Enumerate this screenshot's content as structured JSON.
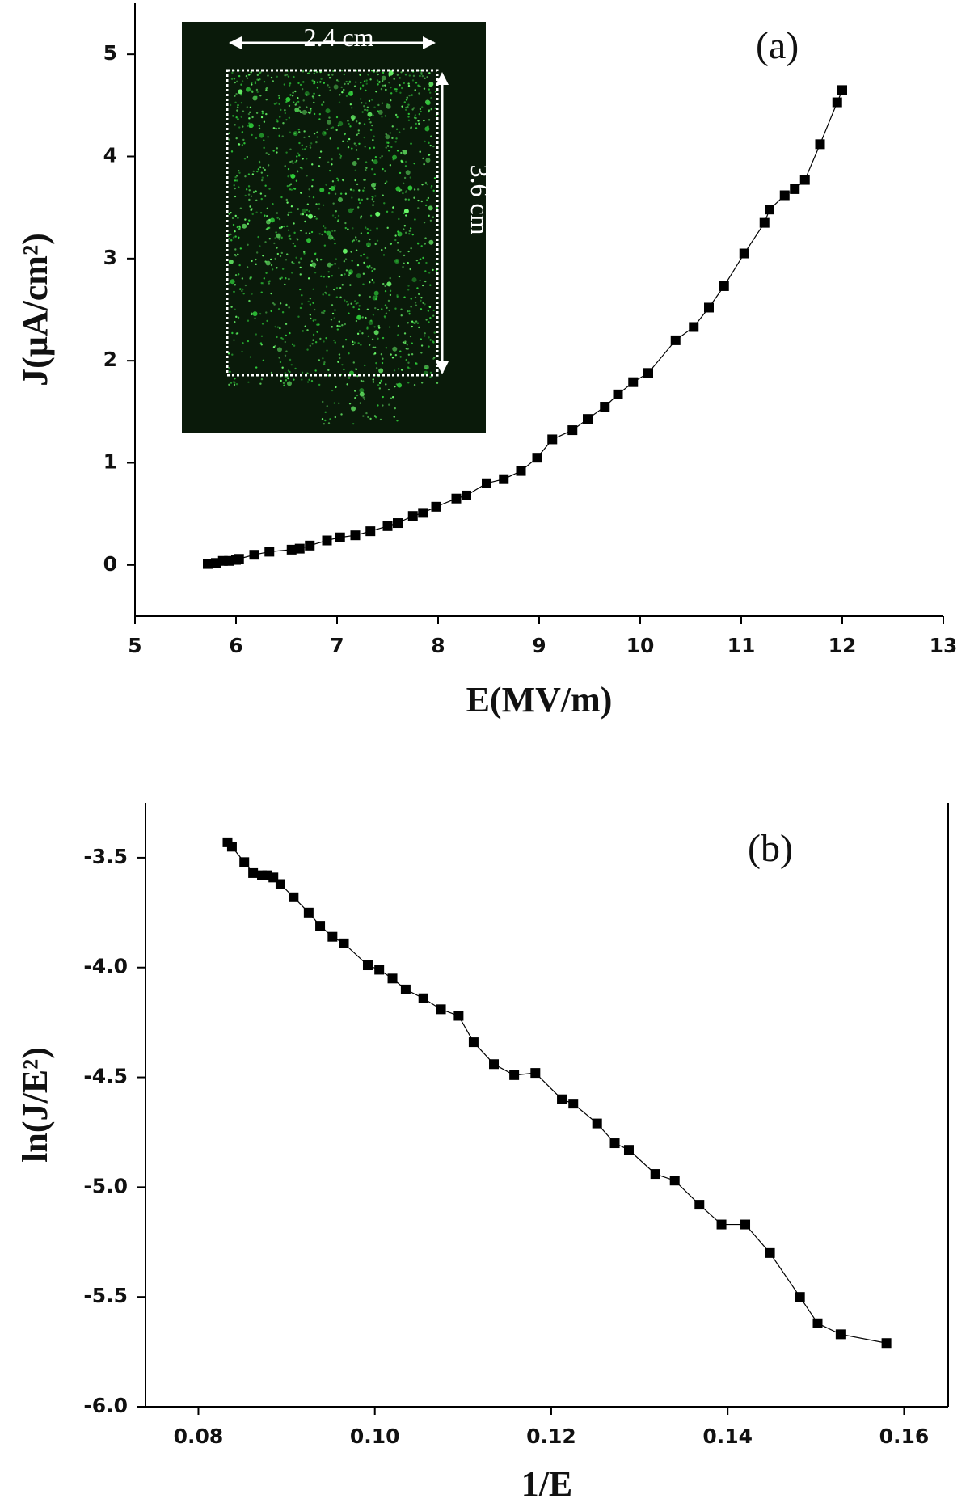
{
  "chart_data": [
    {
      "type": "line",
      "annotation": "(a)",
      "xlabel": "E(MV/m)",
      "ylabel": "J(μA/cm²)",
      "inset_labels": [
        "2.4 cm",
        "3.6 cm"
      ],
      "xlim": [
        5,
        13
      ],
      "ylim": [
        -0.5,
        5.5
      ],
      "xticks": [
        5,
        6,
        7,
        8,
        9,
        10,
        11,
        12,
        13
      ],
      "yticks": [
        0,
        1,
        2,
        3,
        4,
        5
      ],
      "series": [
        {
          "color": "#000000",
          "x": [
            5.72,
            5.8,
            5.87,
            5.93,
            6.0,
            6.03,
            6.18,
            6.33,
            6.55,
            6.63,
            6.73,
            6.9,
            7.03,
            7.18,
            7.33,
            7.5,
            7.6,
            7.75,
            7.85,
            7.98,
            8.18,
            8.28,
            8.48,
            8.65,
            8.82,
            8.98,
            9.13,
            9.33,
            9.48,
            9.65,
            9.78,
            9.93,
            10.08,
            10.35,
            10.53,
            10.68,
            10.83,
            11.03,
            11.23,
            11.28,
            11.43,
            11.53,
            11.63,
            11.78,
            11.95,
            12.0
          ],
          "values": [
            0.01,
            0.02,
            0.04,
            0.04,
            0.05,
            0.06,
            0.1,
            0.13,
            0.15,
            0.16,
            0.19,
            0.24,
            0.27,
            0.29,
            0.33,
            0.38,
            0.41,
            0.48,
            0.51,
            0.57,
            0.65,
            0.68,
            0.8,
            0.84,
            0.92,
            1.05,
            1.23,
            1.32,
            1.43,
            1.55,
            1.67,
            1.79,
            1.88,
            2.2,
            2.33,
            2.52,
            2.73,
            3.05,
            3.35,
            3.48,
            3.62,
            3.68,
            3.77,
            4.12,
            4.53,
            4.65
          ]
        }
      ]
    },
    {
      "type": "line",
      "annotation": "(b)",
      "xlabel": "1/E",
      "ylabel": "ln(J/E²)",
      "xlim": [
        0.074,
        0.165
      ],
      "ylim": [
        -6.0,
        -3.25
      ],
      "xticks": [
        {
          "value": 0.08,
          "label": "0.08"
        },
        {
          "value": 0.1,
          "label": "0.10"
        },
        {
          "value": 0.12,
          "label": "0.12"
        },
        {
          "value": 0.14,
          "label": "0.14"
        },
        {
          "value": 0.16,
          "label": "0.16"
        }
      ],
      "yticks": [
        -3.5,
        {
          "value": -4.0,
          "label": "-4.0"
        },
        -4.5,
        {
          "value": -5.0,
          "label": "-5.0"
        },
        -5.5,
        {
          "value": -6.0,
          "label": "-6.0"
        }
      ],
      "series": [
        {
          "color": "#000000",
          "x": [
            0.0833,
            0.0838,
            0.0852,
            0.0862,
            0.0872,
            0.0878,
            0.0885,
            0.0893,
            0.0908,
            0.0925,
            0.0938,
            0.0952,
            0.0965,
            0.0992,
            0.1005,
            0.102,
            0.1035,
            0.1055,
            0.1075,
            0.1095,
            0.1112,
            0.1135,
            0.1158,
            0.1182,
            0.1212,
            0.1225,
            0.1252,
            0.1272,
            0.1288,
            0.1318,
            0.134,
            0.1368,
            0.1393,
            0.142,
            0.1448,
            0.1482,
            0.1502,
            0.1528,
            0.158
          ],
          "values": [
            -3.43,
            -3.45,
            -3.52,
            -3.57,
            -3.58,
            -3.58,
            -3.59,
            -3.62,
            -3.68,
            -3.75,
            -3.81,
            -3.86,
            -3.89,
            -3.99,
            -4.01,
            -4.05,
            -4.1,
            -4.14,
            -4.19,
            -4.22,
            -4.34,
            -4.44,
            -4.49,
            -4.48,
            -4.6,
            -4.62,
            -4.71,
            -4.8,
            -4.83,
            -4.94,
            -4.97,
            -5.08,
            -5.17,
            -5.17,
            -5.3,
            -5.5,
            -5.62,
            -5.67,
            -5.71
          ]
        }
      ]
    }
  ]
}
